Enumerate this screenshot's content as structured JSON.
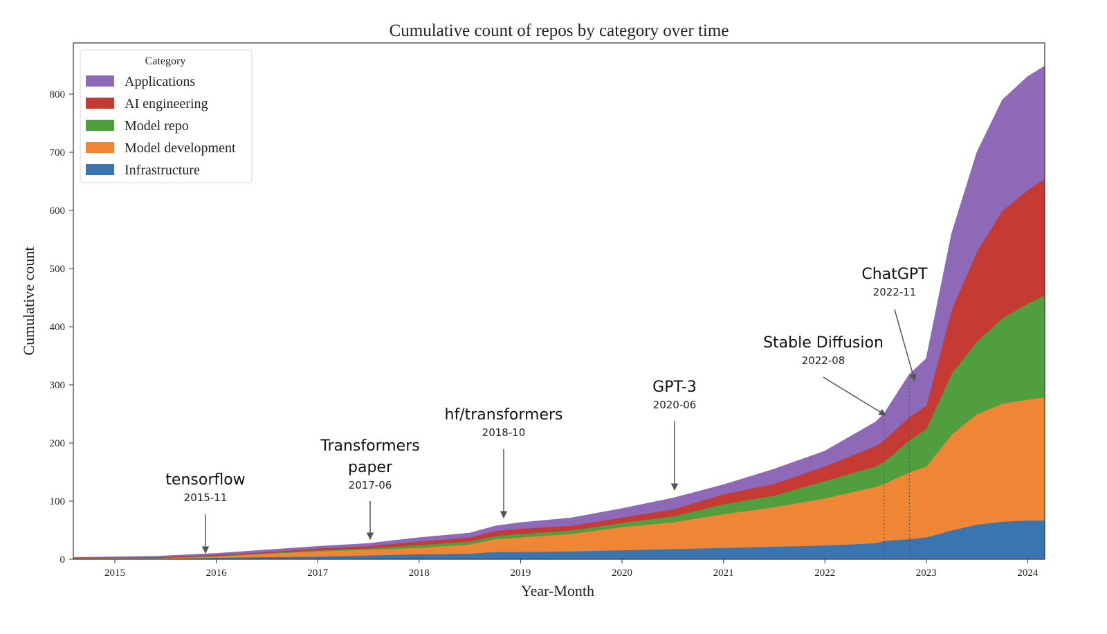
{
  "chart_data": {
    "type": "area",
    "stacked": true,
    "title": "Cumulative count of repos by category over time",
    "xlabel": "Year-Month",
    "ylabel": "Cumulative count",
    "ylim": [
      0,
      850
    ],
    "xlim": [
      "2014-08",
      "2024-03"
    ],
    "yticks": [
      0,
      100,
      200,
      300,
      400,
      500,
      600,
      700,
      800
    ],
    "xticks": [
      "2015",
      "2016",
      "2017",
      "2018",
      "2019",
      "2020",
      "2021",
      "2022",
      "2023",
      "2024"
    ],
    "grid": false,
    "legend": {
      "title": "Category",
      "position": "top-left"
    },
    "x": [
      "2014-08",
      "2015-06",
      "2016-01",
      "2016-07",
      "2017-01",
      "2017-07",
      "2018-01",
      "2018-07",
      "2018-10",
      "2019-01",
      "2019-07",
      "2020-01",
      "2020-07",
      "2021-01",
      "2021-07",
      "2022-01",
      "2022-07",
      "2022-08",
      "2022-11",
      "2023-01",
      "2023-04",
      "2023-07",
      "2023-10",
      "2024-01",
      "2024-03"
    ],
    "series": [
      {
        "name": "Infrastructure",
        "color": "#3b75af",
        "values": [
          1,
          1,
          3,
          4,
          5,
          7,
          9,
          10,
          13,
          13,
          14,
          16,
          18,
          20,
          22,
          24,
          28,
          32,
          35,
          38,
          50,
          60,
          65,
          67,
          67
        ]
      },
      {
        "name": "Model development",
        "color": "#ef8636",
        "values": [
          1,
          1,
          2,
          6,
          9,
          10,
          11,
          16,
          22,
          25,
          30,
          40,
          46,
          58,
          68,
          81,
          97,
          98,
          115,
          122,
          165,
          190,
          203,
          208,
          212
        ]
      },
      {
        "name": "Model repo",
        "color": "#519e3e",
        "values": [
          0,
          1,
          1,
          1,
          2,
          2,
          5,
          5,
          5,
          6,
          6,
          7,
          10,
          17,
          20,
          30,
          35,
          38,
          55,
          65,
          105,
          125,
          147,
          165,
          176
        ]
      },
      {
        "name": "AI engineering",
        "color": "#c53a32",
        "values": [
          1,
          1,
          2,
          2,
          3,
          4,
          6,
          7,
          9,
          9,
          8,
          9,
          12,
          17,
          20,
          25,
          35,
          37,
          40,
          40,
          110,
          155,
          185,
          195,
          200
        ]
      },
      {
        "name": "Applications",
        "color": "#8d69b8",
        "values": [
          0,
          1,
          2,
          3,
          3,
          4,
          6,
          7,
          8,
          10,
          13,
          15,
          19,
          16,
          25,
          26,
          41,
          45,
          73,
          80,
          130,
          170,
          190,
          195,
          193
        ]
      }
    ],
    "annotations": [
      {
        "label": "tensorflow",
        "date": "2015-11"
      },
      {
        "label": "Transformers paper",
        "date": "2017-06"
      },
      {
        "label": "hf/transformers",
        "date": "2018-10"
      },
      {
        "label": "GPT-3",
        "date": "2020-06"
      },
      {
        "label": "Stable Diffusion",
        "date": "2022-08"
      },
      {
        "label": "ChatGPT",
        "date": "2022-11"
      }
    ]
  }
}
